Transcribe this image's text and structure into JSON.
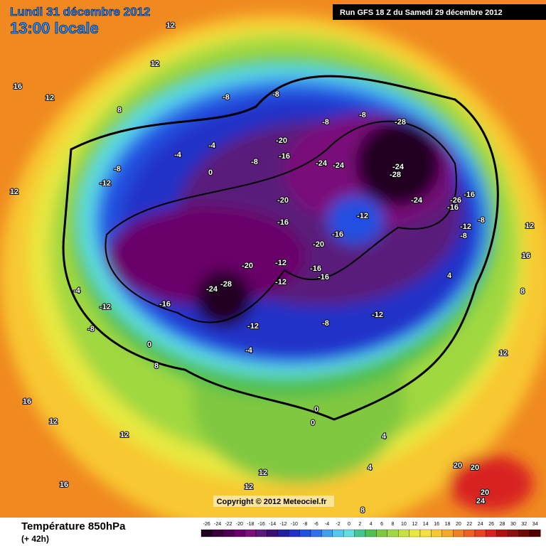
{
  "header": {
    "date": "Lundi 31 décembre 2012",
    "time": "13:00 locale",
    "run": "Run GFS 18 Z du Samedi 29 décembre 2012"
  },
  "footer": {
    "title": "Température 850hPa",
    "lead": "(+ 42h)",
    "copyright": "Copyright © 2012 Meteociel.fr"
  },
  "legend": {
    "ticks": [
      -26,
      -24,
      -22,
      -20,
      -18,
      -16,
      -14,
      -12,
      -10,
      -8,
      -6,
      -4,
      -2,
      0,
      2,
      4,
      6,
      8,
      10,
      12,
      14,
      16,
      18,
      20,
      22,
      24,
      26,
      28,
      30,
      32,
      34
    ],
    "colors": [
      "#200020",
      "#3a003a",
      "#500050",
      "#6a006a",
      "#7a107a",
      "#5a1a7a",
      "#3c1070",
      "#2020a0",
      "#2030c8",
      "#2050e0",
      "#3070f0",
      "#40a0f0",
      "#50c8f0",
      "#60e0e0",
      "#40c890",
      "#50c050",
      "#80c840",
      "#a0d840",
      "#c8e040",
      "#e8e840",
      "#f8e040",
      "#f8c830",
      "#f8a828",
      "#f08020",
      "#f06020",
      "#e84020",
      "#d82020",
      "#b01010",
      "#901010",
      "#700808",
      "#500000"
    ]
  },
  "contour_labels": [
    12,
    16,
    12,
    8,
    12,
    -8,
    -8,
    -8,
    -8,
    -28,
    -20,
    -24,
    -24,
    -24,
    -28,
    -24,
    -16,
    -26,
    -16,
    -12,
    -16,
    -20,
    -16,
    -20,
    -12,
    -8,
    -8,
    4,
    -12,
    -8,
    -16,
    -24,
    -28,
    -20,
    -12,
    -12,
    -16,
    -16,
    -12,
    -8,
    -12,
    -4,
    0,
    8,
    -4,
    0,
    0,
    4,
    4,
    8,
    12,
    12,
    16,
    12,
    16,
    12,
    20,
    20,
    24,
    20,
    8,
    12,
    16,
    12,
    12,
    -12,
    -8,
    -4,
    -4,
    0,
    -8,
    -16
  ]
}
